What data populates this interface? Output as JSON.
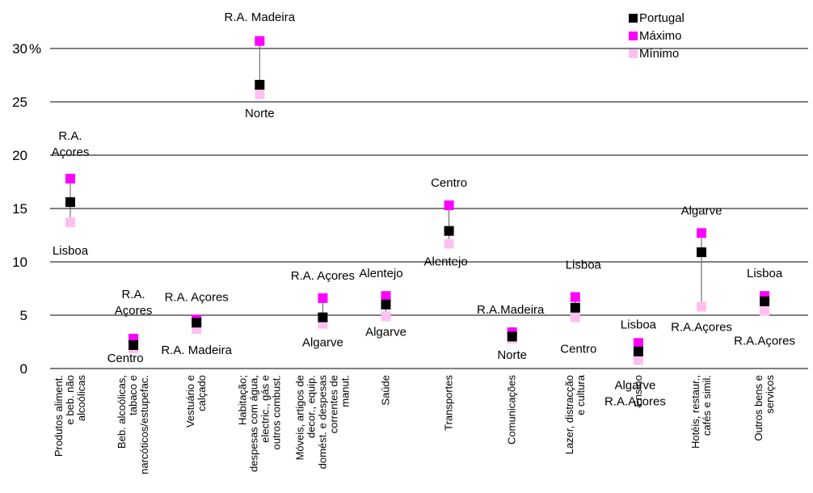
{
  "chart_data": {
    "type": "scatter",
    "title": "",
    "xlabel": "",
    "ylabel": "",
    "ylim": [
      0,
      30
    ],
    "y_ticks": [
      "0",
      "5",
      "10",
      "15",
      "20",
      "25",
      "30"
    ],
    "y_unit": "%",
    "grid": true,
    "legend_position": "top-right",
    "categories": [
      "Produtos aliment. e beb. não alcoólicas",
      "Beb. alcoólicas, tabaco e narcóticos/estupefac.",
      "Vestuário e calçado",
      "Habitação; despesas com água, electric., gás e outros combust.",
      "Móveis, artigos de decor., equip. domést. e despesas correntes de manut.",
      "Saúde",
      "Transportes",
      "Comunicações",
      "Lazer, distracção e cultura",
      "Ensino",
      "Hotéis, restaur., cafés e simil.",
      "Outros bens e serviços"
    ],
    "series": [
      {
        "name": "Portugal",
        "color": "#000000",
        "values": [
          15.6,
          2.2,
          4.3,
          26.6,
          4.8,
          6.0,
          12.9,
          3.0,
          5.7,
          1.6,
          10.9,
          6.3
        ]
      },
      {
        "name": "Máximo",
        "color": "#ff00ff",
        "values": [
          17.8,
          2.8,
          4.6,
          30.7,
          6.6,
          6.8,
          15.3,
          3.4,
          6.7,
          2.4,
          12.7,
          6.8
        ]
      },
      {
        "name": "Mínimo",
        "color": "#ffc0f0",
        "values": [
          13.7,
          1.9,
          3.7,
          25.7,
          4.2,
          4.9,
          11.7,
          2.8,
          4.8,
          0.8,
          5.8,
          5.4
        ]
      }
    ],
    "annotations": [
      {
        "category": 0,
        "kind": "max",
        "lines": [
          "R.A.",
          "Açores"
        ]
      },
      {
        "category": 0,
        "kind": "min",
        "lines": [
          "Lisboa"
        ]
      },
      {
        "category": 1,
        "kind": "max",
        "lines": [
          "R.A.",
          "Açores"
        ]
      },
      {
        "category": 1,
        "kind": "min",
        "lines": [
          "Centro"
        ]
      },
      {
        "category": 2,
        "kind": "max",
        "lines": [
          "R.A. Açores"
        ]
      },
      {
        "category": 2,
        "kind": "min",
        "lines": [
          "R.A. Madeira"
        ]
      },
      {
        "category": 3,
        "kind": "max",
        "lines": [
          "R.A. Madeira"
        ]
      },
      {
        "category": 3,
        "kind": "min",
        "lines": [
          "Norte"
        ]
      },
      {
        "category": 4,
        "kind": "max",
        "lines": [
          "R.A. Açores"
        ]
      },
      {
        "category": 4,
        "kind": "min",
        "lines": [
          "Algarve"
        ]
      },
      {
        "category": 5,
        "kind": "max",
        "lines": [
          "Alentejo"
        ]
      },
      {
        "category": 5,
        "kind": "min",
        "lines": [
          "Algarve"
        ]
      },
      {
        "category": 6,
        "kind": "max",
        "lines": [
          "Centro"
        ]
      },
      {
        "category": 6,
        "kind": "min",
        "lines": [
          "Alentejo"
        ]
      },
      {
        "category": 7,
        "kind": "max",
        "lines": [
          "R.A.Madeira"
        ]
      },
      {
        "category": 7,
        "kind": "min",
        "lines": [
          "Norte"
        ]
      },
      {
        "category": 8,
        "kind": "max",
        "lines": [
          "Lisboa"
        ]
      },
      {
        "category": 8,
        "kind": "min",
        "lines": [
          "Centro"
        ]
      },
      {
        "category": 9,
        "kind": "max",
        "lines": [
          "Lisboa"
        ]
      },
      {
        "category": 9,
        "kind": "min",
        "lines": [
          "Algarve",
          "R.A.Açores"
        ]
      },
      {
        "category": 10,
        "kind": "max",
        "lines": [
          "Algarve"
        ]
      },
      {
        "category": 10,
        "kind": "min",
        "lines": [
          "R.A.Açores"
        ]
      },
      {
        "category": 11,
        "kind": "max",
        "lines": [
          "Lisboa"
        ]
      },
      {
        "category": 11,
        "kind": "min",
        "lines": [
          "R.A.Açores"
        ]
      }
    ]
  }
}
